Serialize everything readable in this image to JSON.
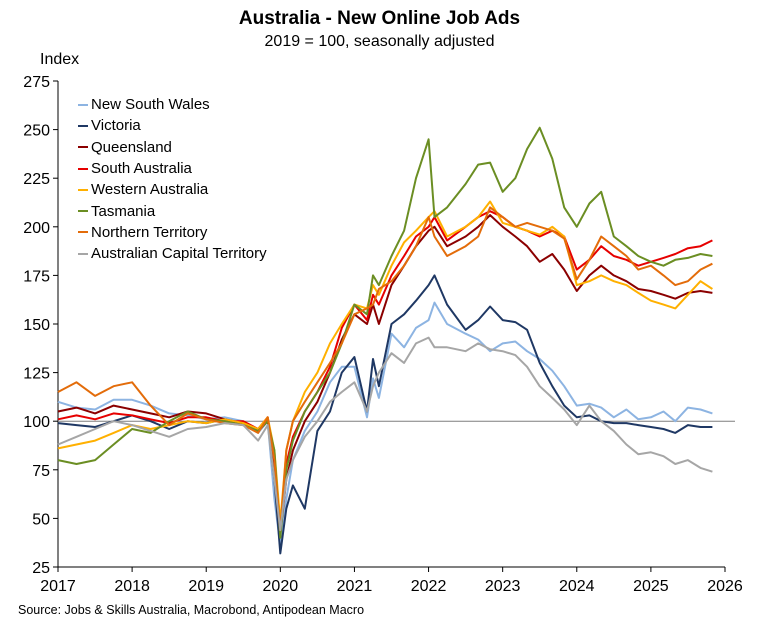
{
  "chart_data": {
    "type": "line",
    "title": "Australia - New Online Job Ads",
    "subtitle": "2019 = 100, seasonally adjusted",
    "ylabel": "Index",
    "xlabel": "",
    "source": "Source: Jobs & Skills Australia, Macrobond, Antipodean Macro",
    "xlim": [
      2017,
      2026
    ],
    "ylim": [
      25,
      275
    ],
    "xticks": [
      "2017",
      "2018",
      "2019",
      "2020",
      "2021",
      "2022",
      "2023",
      "2024",
      "2025",
      "2026"
    ],
    "yticks": [
      "25",
      "50",
      "75",
      "100",
      "125",
      "150",
      "175",
      "200",
      "225",
      "250",
      "275"
    ],
    "reference_line": 100,
    "grid": false,
    "legend_position": "top-left",
    "series": [
      {
        "name": "New South Wales",
        "color": "#8DB4E2",
        "x": [
          2017,
          2017.25,
          2017.5,
          2017.75,
          2018,
          2018.25,
          2018.5,
          2018.75,
          2019,
          2019.25,
          2019.5,
          2019.7,
          2019.83,
          2019.92,
          2020,
          2020.08,
          2020.17,
          2020.33,
          2020.5,
          2020.67,
          2020.83,
          2021,
          2021.17,
          2021.25,
          2021.33,
          2021.5,
          2021.67,
          2021.83,
          2022,
          2022.08,
          2022.25,
          2022.5,
          2022.67,
          2022.83,
          2023,
          2023.17,
          2023.33,
          2023.5,
          2023.67,
          2023.83,
          2024,
          2024.17,
          2024.33,
          2024.5,
          2024.67,
          2024.83,
          2025,
          2025.17,
          2025.33,
          2025.5,
          2025.67,
          2025.83
        ],
        "values": [
          110,
          107,
          106,
          111,
          111,
          108,
          104,
          103,
          101,
          102,
          100,
          94,
          100,
          60,
          36,
          60,
          80,
          95,
          105,
          120,
          128,
          128,
          102,
          122,
          112,
          145,
          138,
          148,
          152,
          161,
          150,
          145,
          142,
          136,
          140,
          141,
          136,
          132,
          126,
          118,
          108,
          109,
          107,
          102,
          106,
          101,
          102,
          105,
          100,
          107,
          106,
          104
        ]
      },
      {
        "name": "Victoria",
        "color": "#1F3864",
        "x": [
          2017,
          2017.25,
          2017.5,
          2017.75,
          2018,
          2018.25,
          2018.5,
          2018.75,
          2019,
          2019.25,
          2019.5,
          2019.7,
          2019.83,
          2019.92,
          2020,
          2020.08,
          2020.17,
          2020.33,
          2020.5,
          2020.67,
          2020.83,
          2021,
          2021.17,
          2021.25,
          2021.33,
          2021.5,
          2021.67,
          2021.83,
          2022,
          2022.08,
          2022.25,
          2022.5,
          2022.67,
          2022.83,
          2023,
          2023.17,
          2023.33,
          2023.5,
          2023.67,
          2023.83,
          2024,
          2024.17,
          2024.33,
          2024.5,
          2024.67,
          2024.83,
          2025,
          2025.17,
          2025.33,
          2025.5,
          2025.67,
          2025.83
        ],
        "values": [
          99,
          98,
          97,
          100,
          103,
          100,
          96,
          100,
          99,
          101,
          98,
          95,
          100,
          70,
          32,
          55,
          67,
          55,
          95,
          105,
          125,
          133,
          105,
          132,
          118,
          150,
          155,
          162,
          170,
          175,
          160,
          147,
          152,
          159,
          152,
          151,
          147,
          130,
          118,
          108,
          102,
          103,
          100,
          99,
          99,
          98,
          97,
          96,
          94,
          98,
          97,
          97
        ]
      },
      {
        "name": "Queensland",
        "color": "#8B0000",
        "x": [
          2017,
          2017.25,
          2017.5,
          2017.75,
          2018,
          2018.25,
          2018.5,
          2018.75,
          2019,
          2019.25,
          2019.5,
          2019.7,
          2019.83,
          2019.92,
          2020,
          2020.08,
          2020.17,
          2020.33,
          2020.5,
          2020.67,
          2020.83,
          2021,
          2021.17,
          2021.25,
          2021.33,
          2021.5,
          2021.67,
          2021.83,
          2022,
          2022.08,
          2022.25,
          2022.5,
          2022.67,
          2022.83,
          2023,
          2023.17,
          2023.33,
          2023.5,
          2023.67,
          2023.83,
          2024,
          2024.17,
          2024.33,
          2024.5,
          2024.67,
          2024.83,
          2025,
          2025.17,
          2025.33,
          2025.5,
          2025.67,
          2025.83
        ],
        "values": [
          105,
          107,
          104,
          108,
          106,
          104,
          102,
          105,
          104,
          101,
          99,
          95,
          100,
          75,
          42,
          70,
          85,
          100,
          110,
          125,
          142,
          155,
          150,
          160,
          150,
          170,
          180,
          190,
          198,
          200,
          190,
          195,
          200,
          206,
          200,
          195,
          190,
          182,
          186,
          178,
          167,
          175,
          180,
          175,
          172,
          168,
          167,
          165,
          163,
          166,
          167,
          166
        ]
      },
      {
        "name": "South Australia",
        "color": "#E60000",
        "x": [
          2017,
          2017.25,
          2017.5,
          2017.75,
          2018,
          2018.25,
          2018.5,
          2018.75,
          2019,
          2019.25,
          2019.5,
          2019.7,
          2019.83,
          2019.92,
          2020,
          2020.08,
          2020.17,
          2020.33,
          2020.5,
          2020.67,
          2020.83,
          2021,
          2021.17,
          2021.25,
          2021.33,
          2021.5,
          2021.67,
          2021.83,
          2022,
          2022.08,
          2022.25,
          2022.5,
          2022.67,
          2022.83,
          2023,
          2023.17,
          2023.33,
          2023.5,
          2023.67,
          2023.83,
          2024,
          2024.17,
          2024.33,
          2024.5,
          2024.67,
          2024.83,
          2025,
          2025.17,
          2025.33,
          2025.5,
          2025.67,
          2025.83
        ],
        "values": [
          101,
          103,
          101,
          104,
          103,
          101,
          99,
          102,
          102,
          100,
          100,
          96,
          102,
          80,
          45,
          78,
          92,
          105,
          115,
          128,
          148,
          160,
          152,
          165,
          160,
          175,
          185,
          195,
          200,
          205,
          193,
          200,
          205,
          208,
          205,
          200,
          198,
          195,
          198,
          195,
          178,
          183,
          190,
          185,
          183,
          180,
          182,
          184,
          186,
          189,
          190,
          193
        ]
      },
      {
        "name": "Western Australia",
        "color": "#FFB000",
        "x": [
          2017,
          2017.25,
          2017.5,
          2017.75,
          2018,
          2018.25,
          2018.5,
          2018.75,
          2019,
          2019.25,
          2019.5,
          2019.7,
          2019.83,
          2019.92,
          2020,
          2020.08,
          2020.17,
          2020.33,
          2020.5,
          2020.67,
          2020.83,
          2021,
          2021.17,
          2021.25,
          2021.33,
          2021.5,
          2021.67,
          2021.83,
          2022,
          2022.08,
          2022.25,
          2022.5,
          2022.67,
          2022.83,
          2023,
          2023.17,
          2023.33,
          2023.5,
          2023.67,
          2023.83,
          2024,
          2024.17,
          2024.33,
          2024.5,
          2024.67,
          2024.83,
          2025,
          2025.17,
          2025.33,
          2025.5,
          2025.67,
          2025.83
        ],
        "values": [
          86,
          88,
          90,
          94,
          98,
          96,
          98,
          100,
          99,
          101,
          99,
          96,
          102,
          85,
          48,
          85,
          100,
          115,
          125,
          140,
          150,
          160,
          158,
          170,
          165,
          180,
          192,
          198,
          205,
          208,
          195,
          200,
          205,
          213,
          202,
          200,
          198,
          196,
          200,
          195,
          170,
          172,
          175,
          172,
          170,
          166,
          162,
          160,
          158,
          165,
          172,
          168
        ]
      },
      {
        "name": "Tasmania",
        "color": "#6B8E23",
        "x": [
          2017,
          2017.25,
          2017.5,
          2017.75,
          2018,
          2018.25,
          2018.5,
          2018.75,
          2019,
          2019.25,
          2019.5,
          2019.7,
          2019.83,
          2019.92,
          2020,
          2020.08,
          2020.17,
          2020.33,
          2020.5,
          2020.67,
          2020.83,
          2021,
          2021.17,
          2021.25,
          2021.33,
          2021.5,
          2021.67,
          2021.83,
          2022,
          2022.08,
          2022.25,
          2022.5,
          2022.67,
          2022.83,
          2023,
          2023.17,
          2023.33,
          2023.5,
          2023.67,
          2023.83,
          2024,
          2024.17,
          2024.33,
          2024.5,
          2024.67,
          2024.83,
          2025,
          2025.17,
          2025.33,
          2025.5,
          2025.67,
          2025.83
        ],
        "values": [
          80,
          78,
          80,
          88,
          96,
          94,
          100,
          105,
          101,
          100,
          98,
          95,
          100,
          85,
          40,
          75,
          90,
          105,
          115,
          125,
          140,
          160,
          155,
          175,
          170,
          185,
          198,
          225,
          245,
          205,
          210,
          222,
          232,
          233,
          218,
          225,
          240,
          251,
          235,
          210,
          200,
          212,
          218,
          195,
          190,
          185,
          182,
          180,
          183,
          184,
          186,
          185
        ]
      },
      {
        "name": "Northern Territory",
        "color": "#E36C0A",
        "x": [
          2017,
          2017.25,
          2017.5,
          2017.75,
          2018,
          2018.25,
          2018.5,
          2018.75,
          2019,
          2019.25,
          2019.5,
          2019.7,
          2019.83,
          2019.92,
          2020,
          2020.08,
          2020.17,
          2020.33,
          2020.5,
          2020.67,
          2020.83,
          2021,
          2021.17,
          2021.25,
          2021.33,
          2021.5,
          2021.67,
          2021.83,
          2022,
          2022.08,
          2022.25,
          2022.5,
          2022.67,
          2022.83,
          2023,
          2023.17,
          2023.33,
          2023.5,
          2023.67,
          2023.83,
          2024,
          2024.17,
          2024.33,
          2024.5,
          2024.67,
          2024.83,
          2025,
          2025.17,
          2025.33,
          2025.5,
          2025.67,
          2025.83
        ],
        "values": [
          115,
          120,
          113,
          118,
          120,
          108,
          98,
          104,
          101,
          99,
          98,
          94,
          102,
          80,
          44,
          85,
          100,
          110,
          120,
          130,
          140,
          155,
          158,
          160,
          168,
          172,
          180,
          190,
          205,
          195,
          185,
          190,
          195,
          210,
          205,
          200,
          202,
          200,
          198,
          194,
          173,
          183,
          195,
          190,
          185,
          178,
          180,
          175,
          170,
          172,
          178,
          181
        ]
      },
      {
        "name": "Australian Capital Territory",
        "color": "#A6A6A6",
        "x": [
          2017,
          2017.25,
          2017.5,
          2017.75,
          2018,
          2018.25,
          2018.5,
          2018.75,
          2019,
          2019.25,
          2019.5,
          2019.7,
          2019.83,
          2019.92,
          2020,
          2020.08,
          2020.17,
          2020.33,
          2020.5,
          2020.67,
          2020.83,
          2021,
          2021.17,
          2021.25,
          2021.33,
          2021.5,
          2021.67,
          2021.83,
          2022,
          2022.08,
          2022.25,
          2022.5,
          2022.67,
          2022.83,
          2023,
          2023.17,
          2023.33,
          2023.5,
          2023.67,
          2023.83,
          2024,
          2024.17,
          2024.33,
          2024.5,
          2024.67,
          2024.83,
          2025,
          2025.17,
          2025.33,
          2025.5,
          2025.67,
          2025.83
        ],
        "values": [
          88,
          92,
          96,
          100,
          98,
          95,
          92,
          96,
          97,
          99,
          98,
          90,
          98,
          70,
          44,
          70,
          80,
          92,
          100,
          110,
          115,
          120,
          105,
          118,
          125,
          135,
          130,
          140,
          143,
          138,
          138,
          136,
          140,
          137,
          136,
          134,
          128,
          118,
          112,
          106,
          98,
          108,
          100,
          95,
          88,
          83,
          84,
          82,
          78,
          80,
          76,
          74
        ]
      }
    ]
  }
}
